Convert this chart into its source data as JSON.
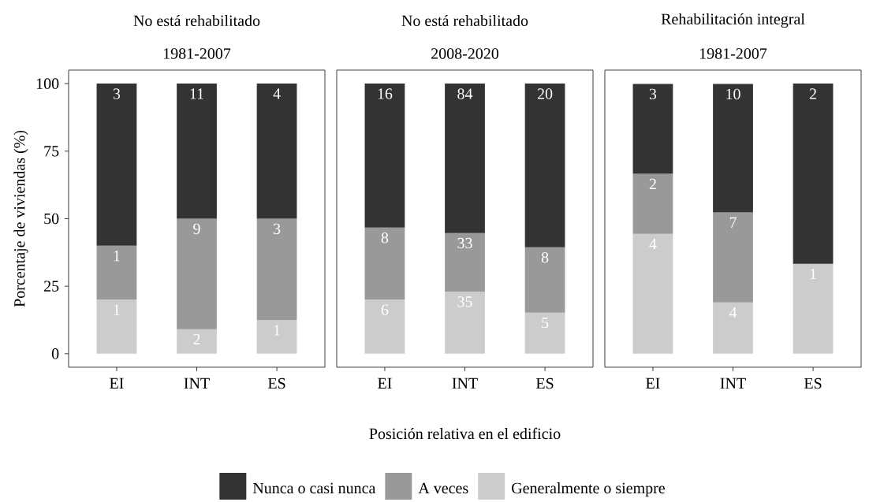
{
  "chart_data": [
    {
      "type": "bar",
      "stacked": true,
      "title": "No está rehabilitado",
      "subtitle": "1981-2007",
      "ylabel": "Porcentaje de viviendas (%)",
      "categories": [
        "EI",
        "INT",
        "ES"
      ],
      "ylim": [
        -5,
        105
      ],
      "yticks": [
        0,
        25,
        50,
        75,
        100
      ],
      "series": [
        {
          "color": "#cccccc",
          "values": [
            20,
            9.1,
            12.5
          ]
        },
        {
          "color": "#999999",
          "values": [
            20,
            40.9,
            37.5
          ]
        },
        {
          "color": "#333333",
          "values": [
            60,
            50,
            50
          ]
        }
      ],
      "annotations": [
        {
          "text": "1",
          "x": "EI",
          "y": 20
        },
        {
          "text": "2",
          "x": "INT",
          "y": 9.1
        },
        {
          "text": "1",
          "x": "ES",
          "y": 12.5
        },
        {
          "text": "1",
          "x": "EI",
          "y": 40
        },
        {
          "text": "9",
          "x": "INT",
          "y": 50
        },
        {
          "text": "3",
          "x": "ES",
          "y": 50
        },
        {
          "text": "3",
          "x": "EI",
          "y": 100
        },
        {
          "text": "11",
          "x": "INT",
          "y": 100
        },
        {
          "text": "4",
          "x": "ES",
          "y": 100
        }
      ]
    },
    {
      "type": "bar",
      "stacked": true,
      "title": "No está rehabilitado",
      "subtitle": "2008-2020",
      "xlabel": "Posición relativa en el edificio",
      "categories": [
        "EI",
        "INT",
        "ES"
      ],
      "ylim": [
        -5,
        105
      ],
      "tick_labels": "x",
      "legend": "bottom",
      "series": [
        {
          "name": "Generalmente o siempre",
          "color": "#cccccc",
          "values": [
            20,
            23.0,
            15.2
          ]
        },
        {
          "name": "A veces",
          "color": "#999999",
          "values": [
            26.7,
            21.7,
            24.2
          ]
        },
        {
          "name": "Nunca o casi nunca",
          "color": "#333333",
          "values": [
            53.3,
            55.3,
            60.6
          ]
        }
      ],
      "annotations": [
        {
          "text": "6",
          "x": "EI",
          "y": 20
        },
        {
          "text": "35",
          "x": "INT",
          "y": 23
        },
        {
          "text": "5",
          "x": "ES",
          "y": 15.2
        },
        {
          "text": "8",
          "x": "EI",
          "y": 46.7
        },
        {
          "text": "33",
          "x": "INT",
          "y": 44.7
        },
        {
          "text": "8",
          "x": "ES",
          "y": 39.4
        },
        {
          "text": "16",
          "x": "EI",
          "y": 100
        },
        {
          "text": "84",
          "x": "INT",
          "y": 100
        },
        {
          "text": "20",
          "x": "ES",
          "y": 100
        }
      ]
    },
    {
      "type": "bar",
      "stacked": true,
      "title": "Rehabilitación integral",
      "subtitle": "1981-2007",
      "categories": [
        "EI",
        "INT",
        "ES"
      ],
      "ylim": [
        -5,
        105
      ],
      "tick_labels": "x",
      "series": [
        {
          "color": "#cccccc",
          "values": [
            44.4,
            19.0,
            33.3
          ]
        },
        {
          "color": "#999999",
          "values": [
            22.2,
            33.3,
            null
          ]
        },
        {
          "color": "#333333",
          "values": [
            33.3,
            47.6,
            66.7
          ]
        }
      ],
      "annotations": [
        {
          "text": "4",
          "x": "EI",
          "y": 44.4
        },
        {
          "text": "4",
          "x": "INT",
          "y": 19
        },
        {
          "text": "1",
          "x": "ES",
          "y": 33.3
        },
        {
          "text": "2",
          "x": "EI",
          "y": 66.6
        },
        {
          "text": "7",
          "x": "INT",
          "y": 52.3
        },
        {
          "text": "3",
          "x": "EI",
          "y": 99.9
        },
        {
          "text": "10",
          "x": "INT",
          "y": 99.9
        },
        {
          "text": "2",
          "x": "ES",
          "y": 100
        }
      ]
    }
  ]
}
